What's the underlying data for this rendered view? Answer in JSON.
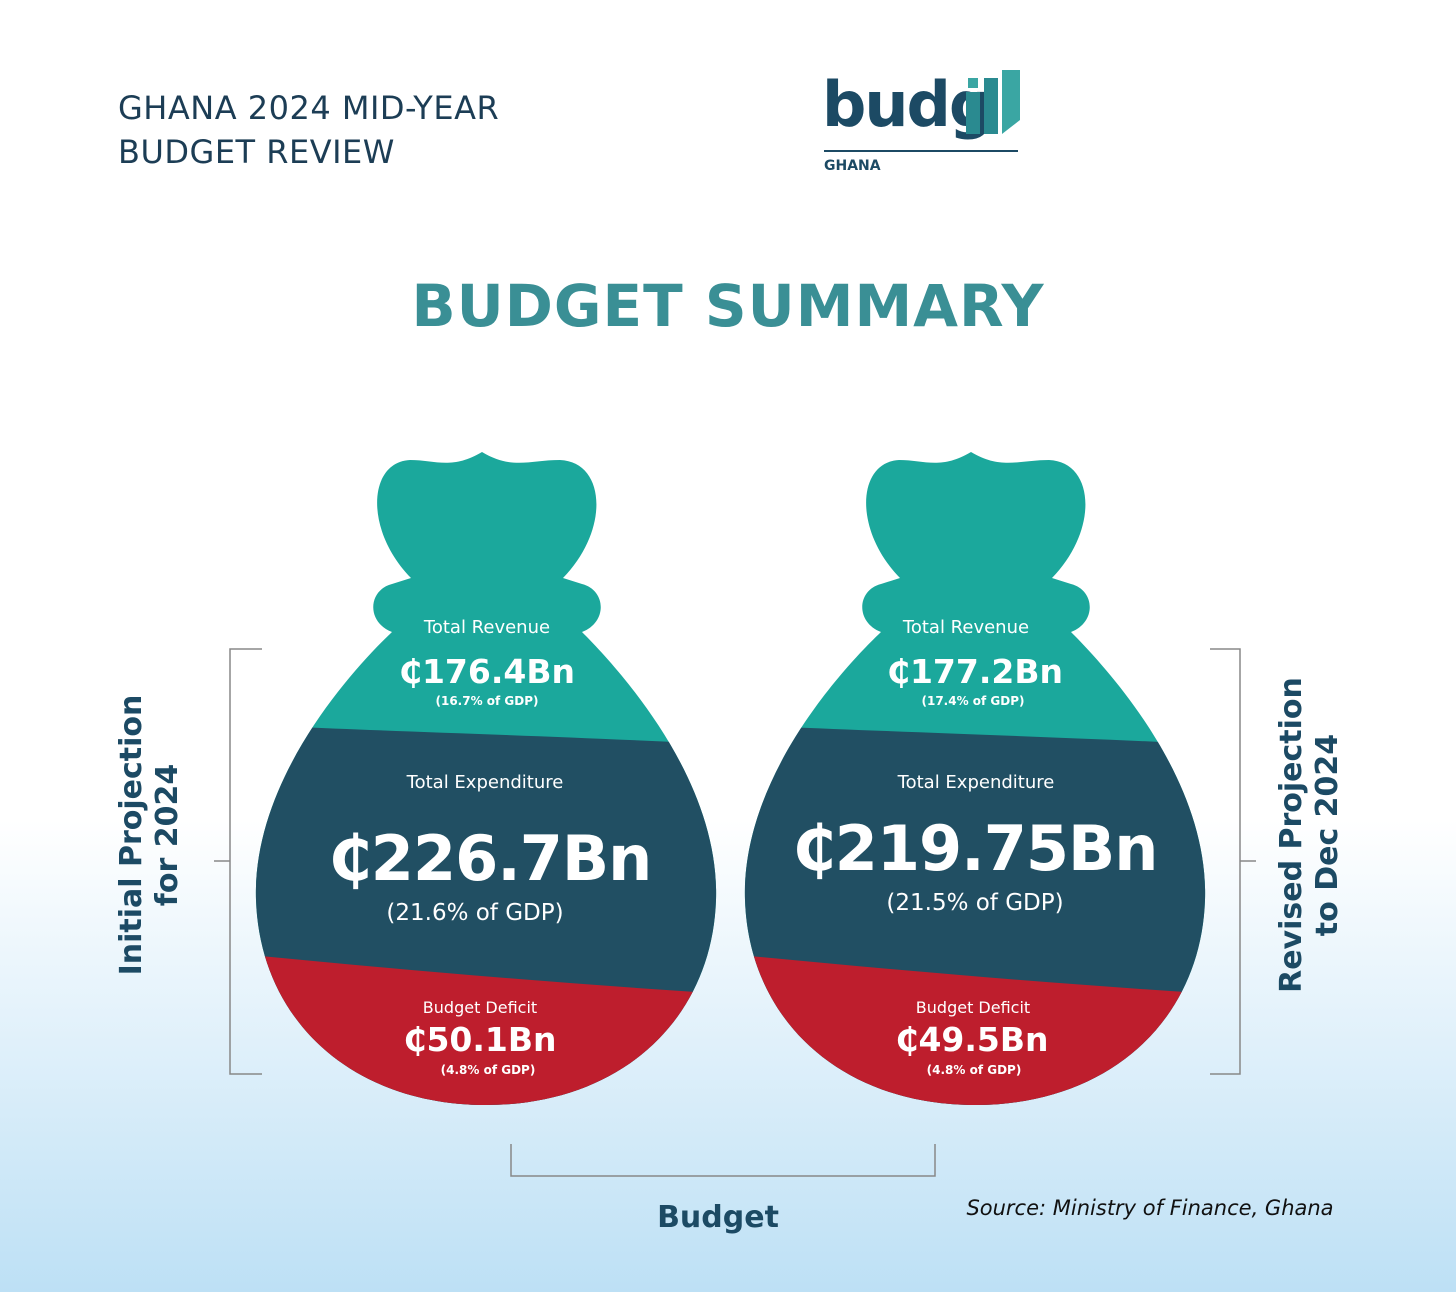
{
  "header": {
    "title_line1": "GHANA 2024 MID-YEAR",
    "title_line2": "BUDGET REVIEW"
  },
  "logo": {
    "wordmark": "budgiT",
    "country": "GHANA"
  },
  "title": "BUDGET SUMMARY",
  "bags": [
    {
      "revenue_label": "Total Revenue",
      "revenue_value": "₵176.4Bn",
      "revenue_gdp": "(16.7% of GDP)",
      "expenditure_label": "Total Expenditure",
      "expenditure_value": "₵226.7Bn",
      "expenditure_gdp": "(21.6% of GDP)",
      "deficit_label": "Budget Deficit",
      "deficit_value": "₵50.1Bn",
      "deficit_gdp": "(4.8% of GDP)"
    },
    {
      "revenue_label": "Total Revenue",
      "revenue_value": "₵177.2Bn",
      "revenue_gdp": "(17.4% of GDP)",
      "expenditure_label": "Total Expenditure",
      "expenditure_value": "₵219.75Bn",
      "expenditure_gdp": "(21.5% of GDP)",
      "deficit_label": "Budget Deficit",
      "deficit_value": "₵49.5Bn",
      "deficit_gdp": "(4.8% of GDP)"
    }
  ],
  "left_label": {
    "line1": "Initial Projection",
    "line2": "for 2024"
  },
  "right_label": {
    "line1": "Revised Projection",
    "line2": "to Dec 2024"
  },
  "bottom_label": "Budget",
  "source": "Source: Ministry of Finance, Ghana",
  "colors": {
    "revenue": "#1ba89c",
    "expenditure": "#214f63",
    "deficit": "#be1e2d",
    "title": "#3a8f95",
    "text_dark": "#1c4a64"
  }
}
